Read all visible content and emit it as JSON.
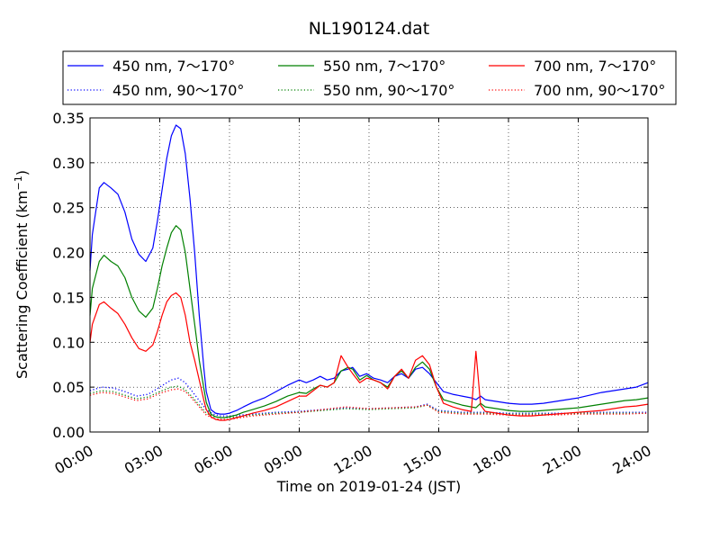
{
  "chart_data": {
    "type": "line",
    "title": "NL190124.dat",
    "xlabel": "Time on 2019-01-24 (JST)",
    "ylabel": "Scattering Coefficient (km",
    "ylabel_sup": "−1",
    "ylabel_end": ")",
    "xlim": [
      0,
      24
    ],
    "ylim": [
      0,
      0.35
    ],
    "grid": true,
    "legend_placement": "top",
    "x_ticks": [
      0,
      3,
      6,
      9,
      12,
      15,
      18,
      21,
      24
    ],
    "x_tick_labels": [
      "00:00",
      "03:00",
      "06:00",
      "09:00",
      "12:00",
      "15:00",
      "18:00",
      "21:00",
      "24:00"
    ],
    "y_ticks": [
      0,
      0.05,
      0.1,
      0.15,
      0.2,
      0.25,
      0.3,
      0.35
    ],
    "y_tick_labels": [
      "0.00",
      "0.05",
      "0.10",
      "0.15",
      "0.20",
      "0.25",
      "0.30",
      "0.35"
    ],
    "series": [
      {
        "name": "450 nm, 7～170°",
        "color": "#0000ff",
        "dash": "solid",
        "x": [
          0,
          0.1,
          0.4,
          0.6,
          0.9,
          1.2,
          1.5,
          1.8,
          2.1,
          2.4,
          2.7,
          2.9,
          3.1,
          3.3,
          3.5,
          3.7,
          3.9,
          4.1,
          4.3,
          4.5,
          4.7,
          4.9,
          5.0,
          5.2,
          5.4,
          5.6,
          5.8,
          6.0,
          6.3,
          6.6,
          7.0,
          7.5,
          8.0,
          8.5,
          9.0,
          9.3,
          9.6,
          9.9,
          10.2,
          10.5,
          10.8,
          11.1,
          11.3,
          11.6,
          11.9,
          12.2,
          12.5,
          12.8,
          13.1,
          13.4,
          13.7,
          14.0,
          14.3,
          14.6,
          14.9,
          15.2,
          15.6,
          16.0,
          16.4,
          16.6,
          16.8,
          17.0,
          17.5,
          18.0,
          18.5,
          19.0,
          19.5,
          20.0,
          20.5,
          21.0,
          21.5,
          22.0,
          22.5,
          23.0,
          23.5,
          24.0
        ],
        "y": [
          0.18,
          0.22,
          0.272,
          0.278,
          0.272,
          0.265,
          0.245,
          0.215,
          0.198,
          0.19,
          0.205,
          0.235,
          0.27,
          0.305,
          0.33,
          0.342,
          0.338,
          0.31,
          0.26,
          0.2,
          0.13,
          0.07,
          0.045,
          0.025,
          0.021,
          0.02,
          0.02,
          0.021,
          0.024,
          0.028,
          0.033,
          0.038,
          0.045,
          0.052,
          0.058,
          0.055,
          0.058,
          0.062,
          0.058,
          0.06,
          0.068,
          0.07,
          0.072,
          0.062,
          0.065,
          0.06,
          0.058,
          0.055,
          0.062,
          0.065,
          0.06,
          0.07,
          0.072,
          0.065,
          0.055,
          0.045,
          0.042,
          0.04,
          0.038,
          0.036,
          0.04,
          0.036,
          0.034,
          0.032,
          0.031,
          0.031,
          0.032,
          0.034,
          0.036,
          0.038,
          0.041,
          0.044,
          0.046,
          0.048,
          0.05,
          0.055
        ]
      },
      {
        "name": "550 nm, 7～170°",
        "color": "#008000",
        "dash": "solid",
        "x": [
          0,
          0.1,
          0.4,
          0.6,
          0.9,
          1.2,
          1.5,
          1.8,
          2.1,
          2.4,
          2.7,
          2.9,
          3.1,
          3.3,
          3.5,
          3.7,
          3.9,
          4.1,
          4.3,
          4.5,
          4.7,
          4.9,
          5.0,
          5.2,
          5.4,
          5.6,
          5.8,
          6.0,
          6.3,
          6.6,
          7.0,
          7.5,
          8.0,
          8.5,
          9.0,
          9.3,
          9.6,
          9.9,
          10.2,
          10.5,
          10.8,
          11.1,
          11.3,
          11.6,
          11.9,
          12.2,
          12.5,
          12.8,
          13.1,
          13.4,
          13.7,
          14.0,
          14.3,
          14.6,
          14.9,
          15.2,
          15.6,
          16.0,
          16.4,
          16.6,
          16.8,
          17.0,
          17.5,
          18.0,
          18.5,
          19.0,
          19.5,
          20.0,
          20.5,
          21.0,
          21.5,
          22.0,
          22.5,
          23.0,
          23.5,
          24.0
        ],
        "y": [
          0.13,
          0.16,
          0.19,
          0.197,
          0.19,
          0.185,
          0.172,
          0.15,
          0.135,
          0.128,
          0.138,
          0.16,
          0.185,
          0.205,
          0.222,
          0.23,
          0.225,
          0.2,
          0.16,
          0.12,
          0.08,
          0.048,
          0.033,
          0.02,
          0.017,
          0.016,
          0.016,
          0.017,
          0.019,
          0.022,
          0.025,
          0.029,
          0.034,
          0.04,
          0.044,
          0.043,
          0.048,
          0.052,
          0.05,
          0.055,
          0.068,
          0.072,
          0.07,
          0.058,
          0.063,
          0.058,
          0.055,
          0.05,
          0.062,
          0.068,
          0.06,
          0.072,
          0.078,
          0.07,
          0.05,
          0.036,
          0.033,
          0.03,
          0.028,
          0.027,
          0.032,
          0.028,
          0.026,
          0.024,
          0.023,
          0.023,
          0.024,
          0.025,
          0.026,
          0.027,
          0.029,
          0.031,
          0.033,
          0.035,
          0.036,
          0.038
        ]
      },
      {
        "name": "700 nm, 7～170°",
        "color": "#ff0000",
        "dash": "solid",
        "x": [
          0,
          0.1,
          0.4,
          0.6,
          0.9,
          1.2,
          1.5,
          1.8,
          2.1,
          2.4,
          2.7,
          2.9,
          3.1,
          3.3,
          3.5,
          3.7,
          3.9,
          4.1,
          4.3,
          4.5,
          4.7,
          4.9,
          5.0,
          5.2,
          5.4,
          5.6,
          5.8,
          6.0,
          6.3,
          6.6,
          7.0,
          7.5,
          8.0,
          8.5,
          9.0,
          9.3,
          9.6,
          9.9,
          10.2,
          10.5,
          10.8,
          11.1,
          11.3,
          11.6,
          11.9,
          12.2,
          12.5,
          12.8,
          13.1,
          13.4,
          13.7,
          14.0,
          14.3,
          14.6,
          14.9,
          15.2,
          15.6,
          16.0,
          16.4,
          16.6,
          16.8,
          17.0,
          17.5,
          18.0,
          18.5,
          19.0,
          19.5,
          20.0,
          20.5,
          21.0,
          21.5,
          22.0,
          22.5,
          23.0,
          23.5,
          24.0
        ],
        "y": [
          0.1,
          0.12,
          0.142,
          0.145,
          0.138,
          0.132,
          0.12,
          0.105,
          0.093,
          0.09,
          0.097,
          0.112,
          0.13,
          0.145,
          0.152,
          0.155,
          0.15,
          0.13,
          0.1,
          0.08,
          0.058,
          0.035,
          0.025,
          0.017,
          0.014,
          0.013,
          0.013,
          0.014,
          0.016,
          0.018,
          0.021,
          0.024,
          0.028,
          0.034,
          0.04,
          0.04,
          0.046,
          0.052,
          0.05,
          0.055,
          0.085,
          0.072,
          0.065,
          0.055,
          0.06,
          0.058,
          0.055,
          0.048,
          0.062,
          0.07,
          0.06,
          0.08,
          0.085,
          0.075,
          0.05,
          0.032,
          0.028,
          0.025,
          0.023,
          0.09,
          0.03,
          0.023,
          0.021,
          0.019,
          0.018,
          0.018,
          0.019,
          0.02,
          0.021,
          0.022,
          0.023,
          0.024,
          0.026,
          0.028,
          0.029,
          0.031
        ]
      },
      {
        "name": "450 nm, 90～170°",
        "color": "#0000ff",
        "dash": "dotted",
        "x": [
          0,
          0.5,
          1.0,
          1.5,
          2.0,
          2.5,
          3.0,
          3.5,
          3.8,
          4.1,
          4.4,
          4.7,
          5.0,
          5.3,
          5.6,
          6.0,
          7.0,
          8.0,
          9.0,
          10.0,
          11.0,
          12.0,
          13.0,
          14.0,
          14.5,
          15.0,
          16.0,
          17.0,
          18.0,
          19.0,
          20.0,
          21.0,
          22.0,
          23.0,
          24.0
        ],
        "y": [
          0.046,
          0.05,
          0.049,
          0.045,
          0.04,
          0.042,
          0.05,
          0.058,
          0.06,
          0.055,
          0.045,
          0.035,
          0.025,
          0.02,
          0.018,
          0.018,
          0.02,
          0.022,
          0.023,
          0.025,
          0.027,
          0.026,
          0.027,
          0.028,
          0.031,
          0.024,
          0.022,
          0.022,
          0.021,
          0.021,
          0.021,
          0.021,
          0.022,
          0.022,
          0.022
        ]
      },
      {
        "name": "550 nm, 90～170°",
        "color": "#008000",
        "dash": "dotted",
        "x": [
          0,
          0.5,
          1.0,
          1.5,
          2.0,
          2.5,
          3.0,
          3.5,
          3.8,
          4.1,
          4.4,
          4.7,
          5.0,
          5.3,
          5.6,
          6.0,
          7.0,
          8.0,
          9.0,
          10.0,
          11.0,
          12.0,
          13.0,
          14.0,
          14.5,
          15.0,
          16.0,
          17.0,
          18.0,
          19.0,
          20.0,
          21.0,
          22.0,
          23.0,
          24.0
        ],
        "y": [
          0.043,
          0.046,
          0.045,
          0.041,
          0.037,
          0.039,
          0.045,
          0.05,
          0.051,
          0.047,
          0.039,
          0.03,
          0.021,
          0.017,
          0.016,
          0.016,
          0.019,
          0.021,
          0.022,
          0.024,
          0.026,
          0.025,
          0.026,
          0.027,
          0.03,
          0.023,
          0.021,
          0.021,
          0.02,
          0.02,
          0.02,
          0.021,
          0.021,
          0.021,
          0.021
        ]
      },
      {
        "name": "700 nm, 90～170°",
        "color": "#ff0000",
        "dash": "dotted",
        "x": [
          0,
          0.5,
          1.0,
          1.5,
          2.0,
          2.5,
          3.0,
          3.5,
          3.8,
          4.1,
          4.4,
          4.7,
          5.0,
          5.3,
          5.6,
          6.0,
          7.0,
          8.0,
          9.0,
          10.0,
          11.0,
          12.0,
          13.0,
          14.0,
          14.5,
          15.0,
          16.0,
          17.0,
          18.0,
          19.0,
          20.0,
          21.0,
          22.0,
          23.0,
          24.0
        ],
        "y": [
          0.041,
          0.044,
          0.043,
          0.039,
          0.035,
          0.037,
          0.043,
          0.047,
          0.048,
          0.045,
          0.037,
          0.028,
          0.019,
          0.015,
          0.014,
          0.014,
          0.018,
          0.02,
          0.022,
          0.025,
          0.028,
          0.026,
          0.027,
          0.028,
          0.03,
          0.022,
          0.02,
          0.02,
          0.019,
          0.019,
          0.019,
          0.02,
          0.02,
          0.02,
          0.021
        ]
      }
    ]
  }
}
